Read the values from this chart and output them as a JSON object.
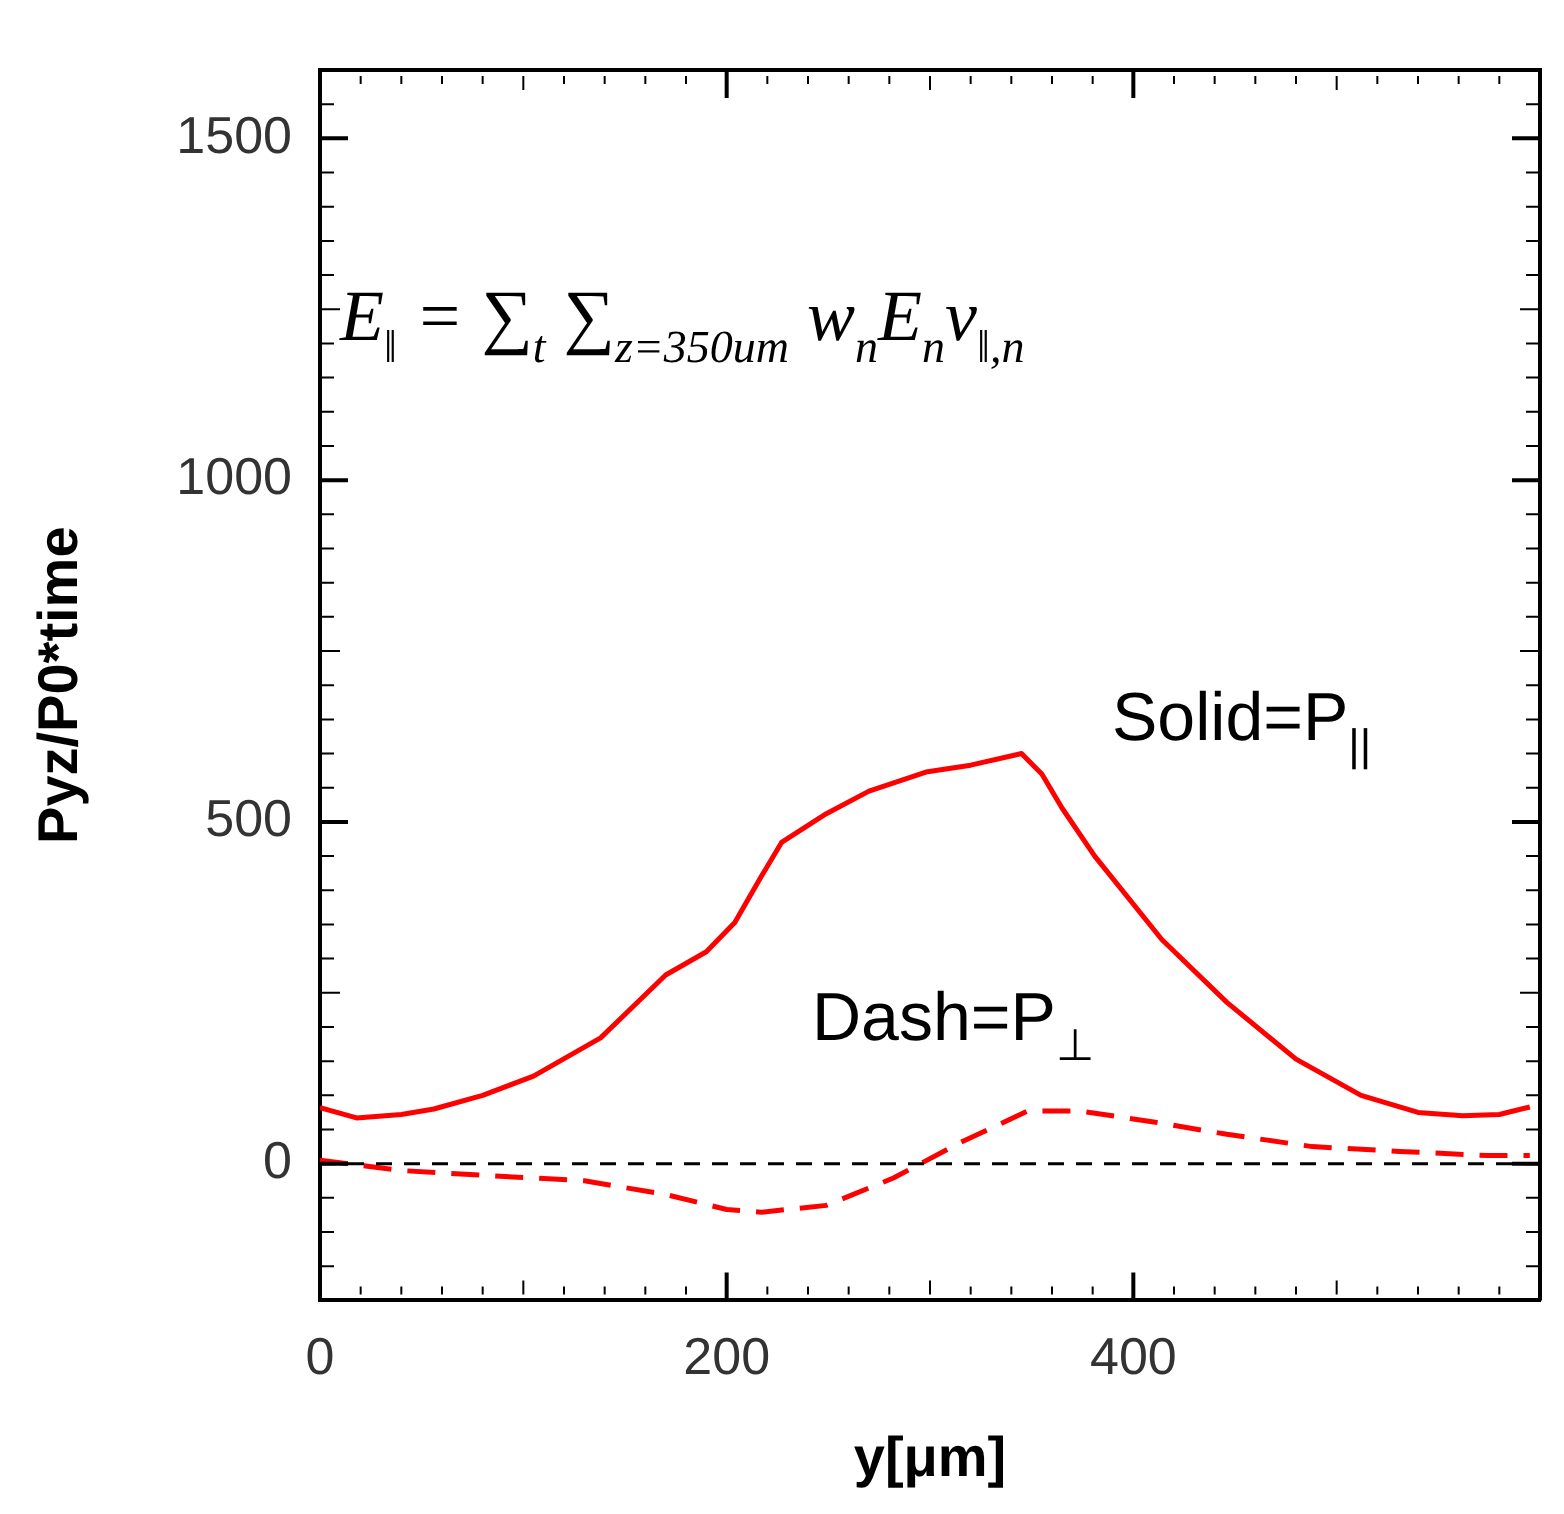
{
  "chart_data": {
    "type": "line",
    "xlabel": "y[μm]",
    "ylabel": "Pyz/P0*time",
    "xlim": [
      0,
      600
    ],
    "xticks": [
      0,
      200,
      400
    ],
    "ylim": [
      -200,
      1600
    ],
    "yticks": [
      0,
      500,
      1000,
      1500
    ],
    "grid": false,
    "legend": false,
    "marker": "none",
    "series": [
      {
        "color": "#ff0000",
        "line_style": "solid",
        "x": [
          0,
          18,
          40,
          56,
          80,
          105,
          138,
          170,
          190,
          204,
          217,
          227,
          249,
          270,
          298,
          320,
          345,
          355,
          365,
          381,
          414,
          446,
          480,
          512,
          540,
          562,
          580,
          595
        ],
        "values": [
          82,
          67,
          72,
          80,
          100,
          128,
          184,
          276,
          310,
          353,
          420,
          470,
          512,
          545,
          573,
          583,
          600,
          570,
          520,
          450,
          328,
          236,
          153,
          100,
          75,
          70,
          72,
          83
        ]
      },
      {
        "color": "#ff0000",
        "line_style": "dashed",
        "x": [
          0,
          40,
          80,
          130,
          170,
          200,
          217,
          249,
          282,
          315,
          348,
          374,
          410,
          446,
          488,
          531,
          574,
          595
        ],
        "values": [
          5,
          -10,
          -17,
          -25,
          -45,
          -67,
          -71,
          -61,
          -21,
          31,
          77,
          77,
          61,
          43,
          25,
          18,
          12,
          12
        ]
      }
    ],
    "ref_lines": [
      {
        "axis": "y",
        "value": 0,
        "color": "#000000",
        "line_style": "dashed"
      }
    ],
    "annotations": [
      "E$_{‖}$ = ∑$_{t}$ ∑$_{z=350um}$ w$_{n}$E$_{n}$v$_{‖,n}$",
      "Solid=P$_{||}$",
      "Dash=P$_{⊥}$"
    ]
  }
}
